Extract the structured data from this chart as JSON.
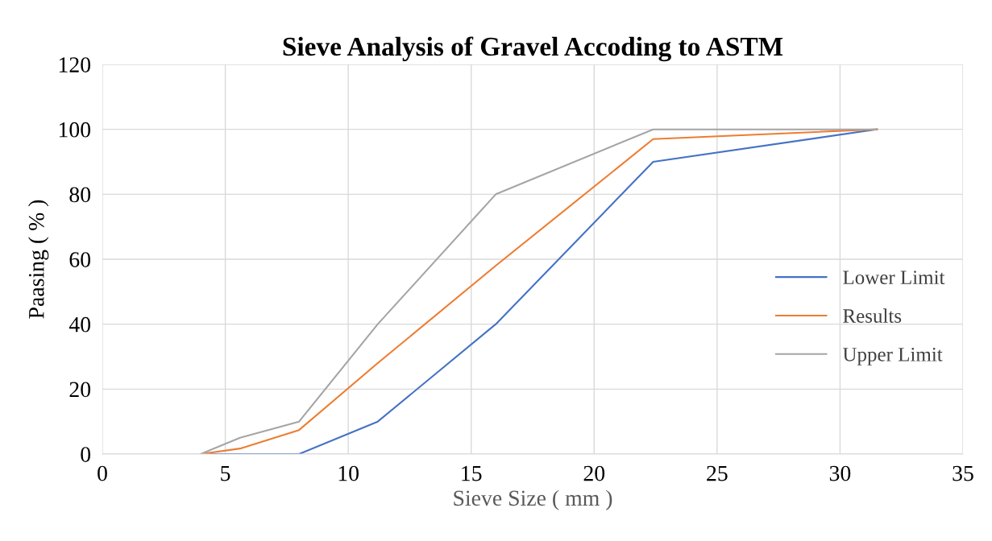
{
  "chart_data": {
    "type": "line",
    "title": "Sieve Analysis of Gravel Accoding to ASTM",
    "xlabel": "Sieve Size ( mm )",
    "ylabel": "Paasing ( % )",
    "x": [
      4,
      5.6,
      8,
      11.2,
      16,
      22.4,
      31.5
    ],
    "series": [
      {
        "name": "Lower Limit",
        "color": "#4472c4",
        "values": [
          0,
          0,
          0,
          10,
          40,
          90,
          100
        ]
      },
      {
        "name": "Results",
        "color": "#ed7d31",
        "values": [
          0,
          1.7,
          7.4,
          28,
          58,
          97,
          100
        ]
      },
      {
        "name": "Upper Limit",
        "color": "#a5a5a5",
        "values": [
          0,
          5,
          10,
          40,
          80,
          100,
          100
        ]
      }
    ],
    "xlim": [
      0,
      35
    ],
    "xticks": [
      0,
      5,
      10,
      15,
      20,
      25,
      30,
      35
    ],
    "ylim": [
      0,
      120
    ],
    "yticks": [
      0,
      20,
      40,
      60,
      80,
      100,
      120
    ],
    "grid": true,
    "legend": "right",
    "marker": "none",
    "line_style": "solid"
  }
}
